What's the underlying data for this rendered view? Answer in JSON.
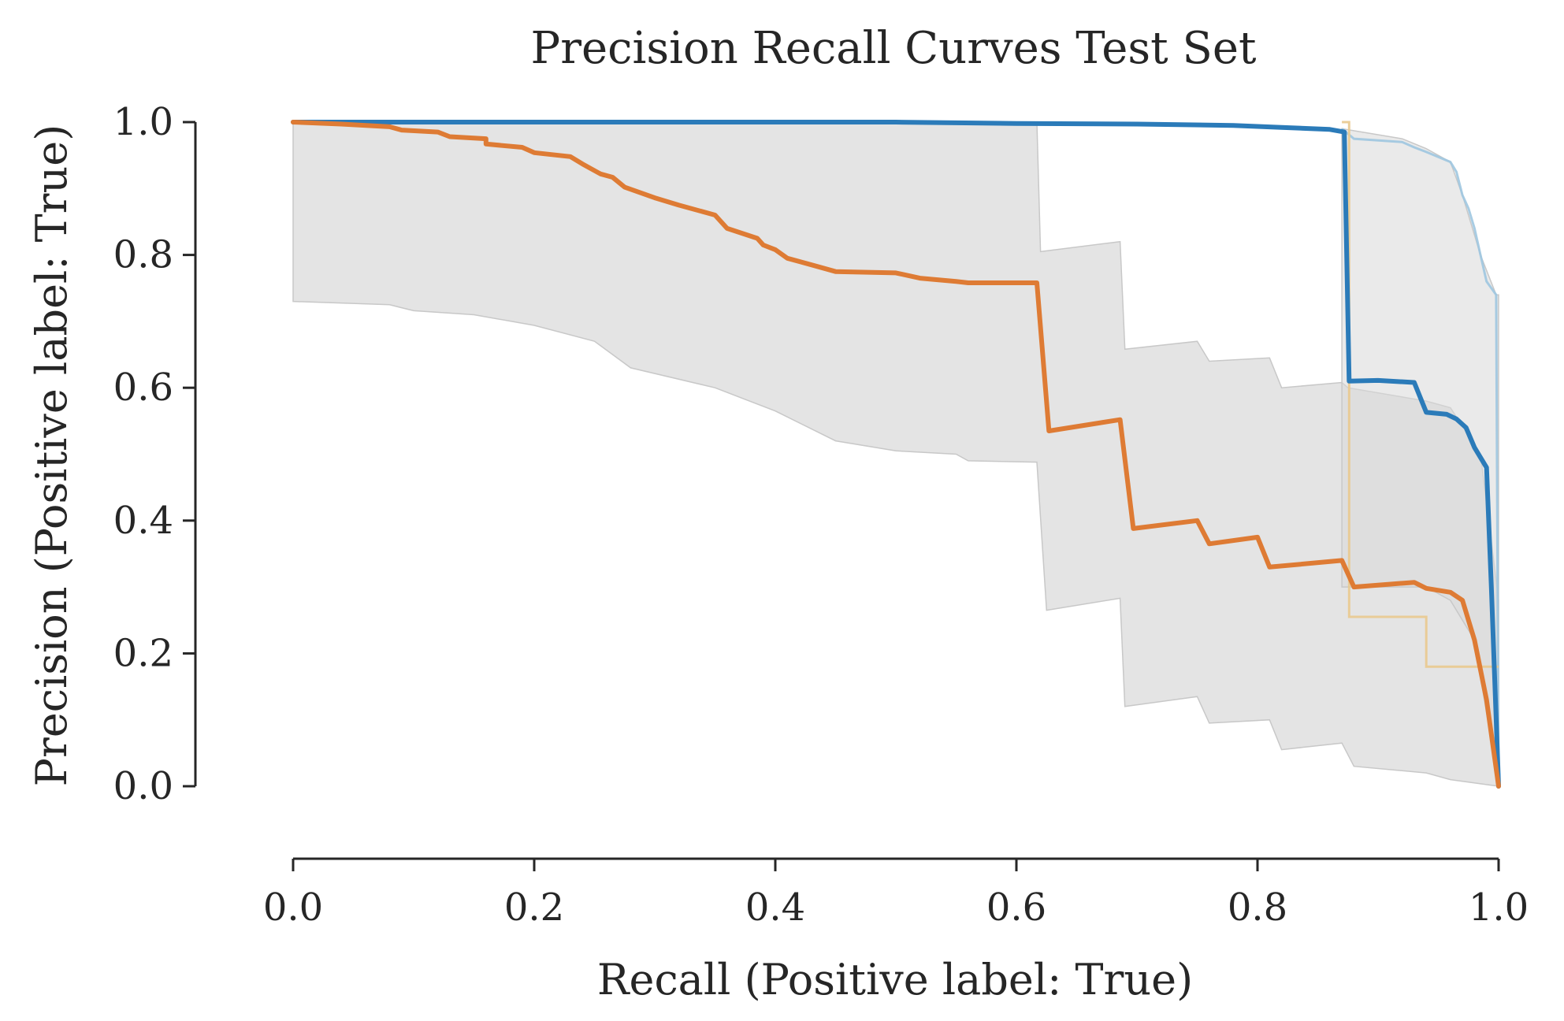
{
  "chart_data": {
    "type": "line",
    "title": "Precision Recall Curves Test Set",
    "xlabel": "Recall (Positive label: True)",
    "ylabel": "Precision (Positive label: True)",
    "xlim": [
      0,
      1
    ],
    "ylim": [
      -0.1,
      1.0
    ],
    "xticks": [
      "0.0",
      "0.2",
      "0.4",
      "0.6",
      "0.8",
      "1.0"
    ],
    "yticks": [
      "0.0",
      "0.2",
      "0.4",
      "0.6",
      "0.8",
      "1.0"
    ],
    "grid": false,
    "legend": "none",
    "colors": {
      "series_blue": "#2b7bb9",
      "series_orange": "#de7b34",
      "faint_blue": "#9ec6e0",
      "faint_gold": "#e9c98e",
      "band_fill": "#d9d9d9",
      "band_edge": "#c8c8c8",
      "axis": "#262626"
    },
    "series": [
      {
        "values": [
          [
            0,
            1.0
          ],
          [
            0.3,
            1.0
          ],
          [
            0.5,
            1.0
          ],
          [
            0.6,
            0.998
          ],
          [
            0.7,
            0.997
          ],
          [
            0.78,
            0.995
          ],
          [
            0.82,
            0.992
          ],
          [
            0.86,
            0.989
          ],
          [
            0.872,
            0.985
          ],
          [
            0.876,
            0.61
          ],
          [
            0.9,
            0.611
          ],
          [
            0.93,
            0.608
          ],
          [
            0.94,
            0.563
          ],
          [
            0.957,
            0.56
          ],
          [
            0.965,
            0.553
          ],
          [
            0.973,
            0.54
          ],
          [
            0.98,
            0.51
          ],
          [
            0.99,
            0.48
          ],
          [
            0.994,
            0.3
          ],
          [
            1.0,
            0.0
          ]
        ]
      },
      {
        "values": [
          [
            0,
            1.0
          ],
          [
            0.04,
            0.997
          ],
          [
            0.08,
            0.993
          ],
          [
            0.09,
            0.988
          ],
          [
            0.12,
            0.985
          ],
          [
            0.13,
            0.978
          ],
          [
            0.16,
            0.975
          ],
          [
            0.16,
            0.967
          ],
          [
            0.19,
            0.962
          ],
          [
            0.2,
            0.954
          ],
          [
            0.23,
            0.948
          ],
          [
            0.24,
            0.937
          ],
          [
            0.255,
            0.922
          ],
          [
            0.265,
            0.917
          ],
          [
            0.275,
            0.902
          ],
          [
            0.3,
            0.886
          ],
          [
            0.32,
            0.875
          ],
          [
            0.35,
            0.86
          ],
          [
            0.36,
            0.84
          ],
          [
            0.385,
            0.825
          ],
          [
            0.39,
            0.815
          ],
          [
            0.4,
            0.808
          ],
          [
            0.41,
            0.795
          ],
          [
            0.43,
            0.785
          ],
          [
            0.45,
            0.775
          ],
          [
            0.5,
            0.773
          ],
          [
            0.52,
            0.765
          ],
          [
            0.55,
            0.76
          ],
          [
            0.56,
            0.758
          ],
          [
            0.617,
            0.758
          ],
          [
            0.627,
            0.535
          ],
          [
            0.686,
            0.552
          ],
          [
            0.697,
            0.388
          ],
          [
            0.75,
            0.4
          ],
          [
            0.76,
            0.365
          ],
          [
            0.8,
            0.375
          ],
          [
            0.81,
            0.33
          ],
          [
            0.87,
            0.34
          ],
          [
            0.88,
            0.3
          ],
          [
            0.93,
            0.307
          ],
          [
            0.94,
            0.298
          ],
          [
            0.96,
            0.292
          ],
          [
            0.97,
            0.28
          ],
          [
            0.98,
            0.22
          ],
          [
            0.99,
            0.13
          ],
          [
            1.0,
            0.0
          ]
        ]
      }
    ],
    "faint_series": [
      {
        "values": [
          [
            0.87,
            0.99
          ],
          [
            0.88,
            0.975
          ],
          [
            0.92,
            0.97
          ],
          [
            0.93,
            0.962
          ],
          [
            0.94,
            0.955
          ],
          [
            0.96,
            0.94
          ],
          [
            0.965,
            0.925
          ],
          [
            0.97,
            0.89
          ],
          [
            0.975,
            0.87
          ],
          [
            0.98,
            0.84
          ],
          [
            0.985,
            0.8
          ],
          [
            0.99,
            0.76
          ],
          [
            0.998,
            0.74
          ],
          [
            1.0,
            0.0
          ]
        ]
      },
      {
        "values": [
          [
            0.87,
            1.0
          ],
          [
            0.876,
            1.0
          ],
          [
            0.876,
            0.255
          ],
          [
            0.94,
            0.255
          ],
          [
            0.94,
            0.18
          ],
          [
            1.0,
            0.18
          ]
        ]
      }
    ],
    "bands": [
      {
        "upper": [
          [
            0,
            1.0
          ],
          [
            0.617,
            1.0
          ],
          [
            0.62,
            0.805
          ],
          [
            0.686,
            0.82
          ],
          [
            0.69,
            0.658
          ],
          [
            0.75,
            0.67
          ],
          [
            0.76,
            0.64
          ],
          [
            0.81,
            0.645
          ],
          [
            0.82,
            0.6
          ],
          [
            0.87,
            0.608
          ],
          [
            0.875,
            0.6
          ],
          [
            0.94,
            0.58
          ],
          [
            0.96,
            0.57
          ],
          [
            0.985,
            0.5
          ],
          [
            1.0,
            0.28
          ]
        ],
        "lower": [
          [
            0,
            0.73
          ],
          [
            0.08,
            0.725
          ],
          [
            0.1,
            0.716
          ],
          [
            0.15,
            0.71
          ],
          [
            0.2,
            0.694
          ],
          [
            0.25,
            0.67
          ],
          [
            0.28,
            0.63
          ],
          [
            0.35,
            0.6
          ],
          [
            0.4,
            0.565
          ],
          [
            0.45,
            0.52
          ],
          [
            0.5,
            0.505
          ],
          [
            0.55,
            0.5
          ],
          [
            0.56,
            0.49
          ],
          [
            0.617,
            0.488
          ],
          [
            0.625,
            0.265
          ],
          [
            0.686,
            0.283
          ],
          [
            0.69,
            0.12
          ],
          [
            0.75,
            0.135
          ],
          [
            0.76,
            0.095
          ],
          [
            0.81,
            0.1
          ],
          [
            0.82,
            0.055
          ],
          [
            0.87,
            0.065
          ],
          [
            0.88,
            0.03
          ],
          [
            0.94,
            0.02
          ],
          [
            0.96,
            0.01
          ],
          [
            1.0,
            0.0
          ]
        ]
      },
      {
        "upper": [
          [
            0.87,
            0.99
          ],
          [
            0.92,
            0.975
          ],
          [
            0.94,
            0.96
          ],
          [
            0.96,
            0.94
          ],
          [
            0.97,
            0.89
          ],
          [
            0.985,
            0.8
          ],
          [
            0.998,
            0.74
          ],
          [
            1.0,
            0.74
          ]
        ],
        "lower": [
          [
            0.87,
            0.3
          ],
          [
            0.94,
            0.3
          ],
          [
            0.96,
            0.28
          ],
          [
            0.98,
            0.22
          ],
          [
            1.0,
            0.0
          ]
        ]
      }
    ]
  }
}
